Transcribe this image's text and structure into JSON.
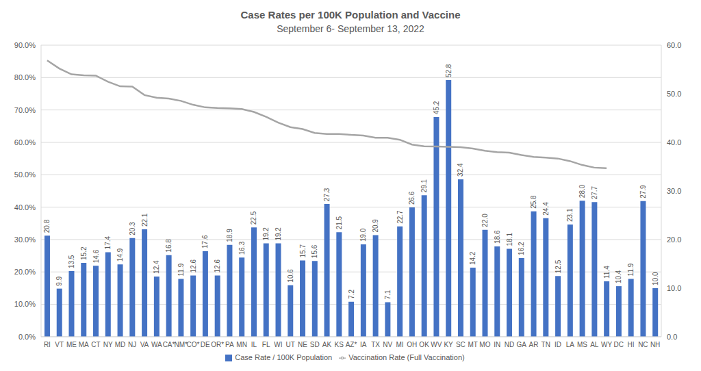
{
  "chart_data": {
    "type": "bar",
    "title": "Case Rates per 100K Population and Vaccine",
    "subtitle": "September 6- September 13, 2022",
    "categories": [
      "RI",
      "VT",
      "ME",
      "MA",
      "CT",
      "NY",
      "MD",
      "NJ",
      "VA",
      "WA",
      "CA*",
      "NM*",
      "CO*",
      "DE",
      "OR*",
      "PA",
      "MN",
      "IL",
      "FL",
      "WI",
      "UT",
      "NE",
      "SD",
      "AK",
      "KS",
      "AZ*",
      "IA",
      "TX",
      "NV",
      "MI",
      "OH",
      "OK",
      "WV",
      "KY",
      "SC",
      "MT",
      "MO",
      "IN",
      "ND",
      "GA",
      "AR",
      "TN",
      "ID",
      "LA",
      "MS",
      "AL",
      "WY",
      "DC",
      "HI",
      "NC",
      "NH"
    ],
    "series": [
      {
        "name": "Case Rate / 100K Population",
        "type": "bar",
        "axis": "y2",
        "color": "#4472c4",
        "values": [
          20.8,
          9.9,
          13.5,
          15.2,
          14.6,
          17.4,
          14.9,
          20.3,
          22.1,
          12.4,
          16.8,
          11.9,
          12.6,
          17.6,
          12.6,
          18.9,
          16.3,
          22.5,
          19.2,
          19.2,
          10.6,
          15.7,
          15.6,
          27.3,
          21.5,
          7.2,
          19.0,
          20.9,
          7.1,
          22.7,
          26.6,
          29.1,
          45.2,
          52.8,
          32.4,
          14.2,
          22.0,
          18.6,
          18.1,
          16.2,
          25.8,
          24.4,
          12.5,
          23.1,
          28.0,
          27.7,
          11.4,
          10.4,
          11.9,
          27.9,
          10.0
        ],
        "value_labels": [
          "20.8",
          "9.9",
          "13.5",
          "15.2",
          "14.6",
          "17.4",
          "14.9",
          "20.3",
          "22.1",
          "12.4",
          "16.8",
          "11.9",
          "12.6",
          "17.6",
          "12.6",
          "18.9",
          "16.3",
          "22.5",
          "19.2",
          "19.2",
          "10.6",
          "15.7",
          "15.6",
          "27.3",
          "21.5",
          "7.2",
          "19.0",
          "20.9",
          "7.1",
          "22.7",
          "26.6",
          "29.1",
          "45.2",
          "52.8",
          "32.4",
          "14.2",
          "22.0",
          "18.6",
          "18.1",
          "16.2",
          "25.8",
          "24.4",
          "12.5",
          "23.1",
          "28.0",
          "27.7",
          "11.4",
          "10.4",
          "11.9",
          "27.9",
          "10.0"
        ]
      },
      {
        "name": "Vaccination Rate (Full Vaccination)",
        "type": "line",
        "color": "#a5a5a5",
        "values": [
          85.3,
          82.8,
          81.0,
          80.7,
          80.6,
          78.7,
          77.3,
          77.2,
          74.6,
          73.8,
          73.5,
          72.8,
          71.6,
          70.8,
          70.6,
          70.5,
          70.3,
          69.4,
          67.9,
          66.1,
          64.7,
          64.1,
          62.9,
          62.6,
          62.6,
          62.3,
          62.1,
          61.4,
          61.4,
          60.8,
          59.3,
          58.8,
          58.7,
          58.6,
          58.5,
          58.1,
          57.4,
          57.0,
          56.8,
          56.1,
          55.5,
          55.3,
          55.0,
          54.2,
          53.0,
          52.2,
          52.0,
          null,
          null,
          null,
          null
        ]
      }
    ],
    "ylim": [
      0,
      90
    ],
    "yticks": [
      {
        "value": 0,
        "label": "0.0%"
      },
      {
        "value": 10,
        "label": "10.0%"
      },
      {
        "value": 20,
        "label": "20.0%"
      },
      {
        "value": 30,
        "label": "30.0%"
      },
      {
        "value": 40,
        "label": "40.0%"
      },
      {
        "value": 50,
        "label": "50.0%"
      },
      {
        "value": 60,
        "label": "60.0%"
      },
      {
        "value": 70,
        "label": "70.0%"
      },
      {
        "value": 80,
        "label": "80.0%"
      },
      {
        "value": 90,
        "label": "90.0%"
      }
    ],
    "y2lim": [
      0,
      60
    ],
    "y2ticks": [
      {
        "value": 0,
        "label": "0.0"
      },
      {
        "value": 10,
        "label": "10.0"
      },
      {
        "value": 20,
        "label": "20.0"
      },
      {
        "value": 30,
        "label": "30.0"
      },
      {
        "value": 40,
        "label": "40.0"
      },
      {
        "value": 50,
        "label": "50.0"
      },
      {
        "value": 60,
        "label": "60.0"
      }
    ],
    "grid": true,
    "legend": "bottom",
    "data_labels": true
  }
}
